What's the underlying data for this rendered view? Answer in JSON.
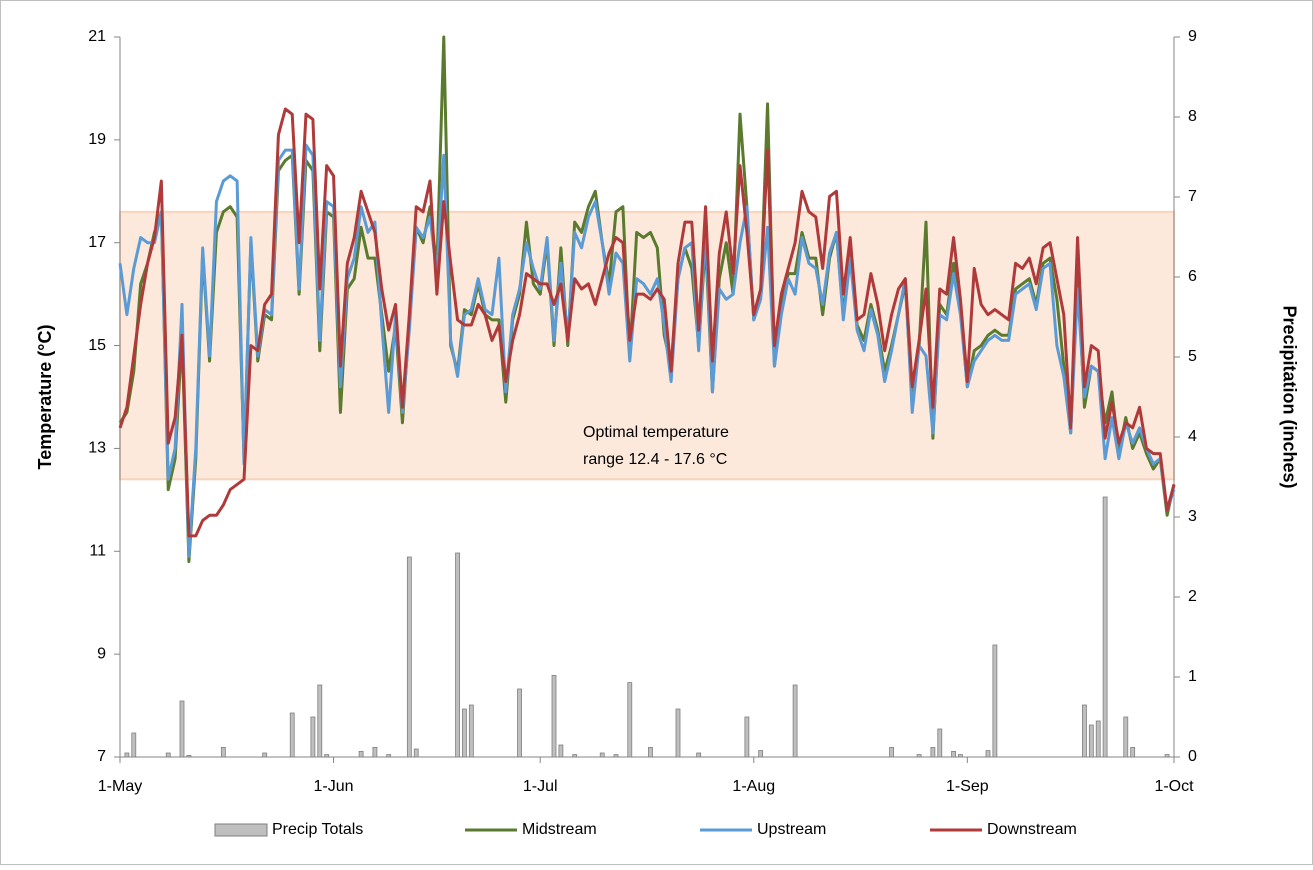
{
  "chart_data": {
    "type": "combo",
    "y_label": "Temperature (°C)",
    "y2_label": "Precipitation (inches)",
    "annotation": [
      "Optimal temperature",
      "range 12.4 - 17.6 °C"
    ],
    "band": [
      12.4,
      17.6
    ],
    "band_color": "#fde9dc",
    "xlim": [
      0,
      153
    ],
    "xticks": [
      {
        "value": 0,
        "label": "1-May"
      },
      {
        "value": 31,
        "label": "1-Jun"
      },
      {
        "value": 61,
        "label": "1-Jul"
      },
      {
        "value": 92,
        "label": "1-Aug"
      },
      {
        "value": 123,
        "label": "1-Sep"
      },
      {
        "value": 153,
        "label": "1-Oct"
      }
    ],
    "ylim": [
      7,
      21
    ],
    "yticks": [
      7,
      9,
      11,
      13,
      15,
      17,
      19,
      21
    ],
    "y2lim": [
      0,
      9
    ],
    "y2ticks": [
      0,
      1,
      2,
      3,
      4,
      5,
      6,
      7,
      8,
      9
    ],
    "grid": false,
    "legend": "bottom",
    "x": [
      0,
      1,
      2,
      3,
      4,
      5,
      6,
      7,
      8,
      9,
      10,
      11,
      12,
      13,
      14,
      15,
      16,
      17,
      18,
      19,
      20,
      21,
      22,
      23,
      24,
      25,
      26,
      27,
      28,
      29,
      30,
      31,
      32,
      33,
      34,
      35,
      36,
      37,
      38,
      39,
      40,
      41,
      42,
      43,
      44,
      45,
      46,
      47,
      48,
      49,
      50,
      51,
      52,
      53,
      54,
      55,
      56,
      57,
      58,
      59,
      60,
      61,
      62,
      63,
      64,
      65,
      66,
      67,
      68,
      69,
      70,
      71,
      72,
      73,
      74,
      75,
      76,
      77,
      78,
      79,
      80,
      81,
      82,
      83,
      84,
      85,
      86,
      87,
      88,
      89,
      90,
      91,
      92,
      93,
      94,
      95,
      96,
      97,
      98,
      99,
      100,
      101,
      102,
      103,
      104,
      105,
      106,
      107,
      108,
      109,
      110,
      111,
      112,
      113,
      114,
      115,
      116,
      117,
      118,
      119,
      120,
      121,
      122,
      123,
      124,
      125,
      126,
      127,
      128,
      129,
      130,
      131,
      132,
      133,
      134,
      135,
      136,
      137,
      138,
      139,
      140,
      141,
      142,
      143,
      144,
      145,
      146,
      147,
      148,
      149,
      150,
      151,
      152,
      153
    ],
    "series": [
      {
        "name": "Precip Totals",
        "type": "bar",
        "axis": "y2",
        "color": "#bfbfbf",
        "values": [
          0,
          0.05,
          0.3,
          0,
          0,
          0,
          0,
          0.05,
          0,
          0.7,
          0.02,
          0,
          0,
          0,
          0,
          0.12,
          0,
          0,
          0,
          0,
          0,
          0.05,
          0,
          0,
          0,
          0.55,
          0,
          0,
          0.5,
          0.9,
          0.03,
          0,
          0,
          0,
          0,
          0.07,
          0,
          0.12,
          0,
          0.03,
          0,
          0,
          2.5,
          0.1,
          0,
          0,
          0,
          0,
          0,
          2.55,
          0.6,
          0.65,
          0,
          0,
          0,
          0,
          0,
          0,
          0.85,
          0,
          0,
          0,
          0,
          1.02,
          0.15,
          0,
          0.03,
          0,
          0,
          0,
          0.05,
          0,
          0.03,
          0,
          0.93,
          0,
          0,
          0.12,
          0,
          0,
          0,
          0.6,
          0,
          0,
          0.05,
          0,
          0,
          0,
          0,
          0,
          0,
          0.5,
          0,
          0.08,
          0,
          0,
          0,
          0,
          0.9,
          0,
          0,
          0,
          0,
          0,
          0,
          0,
          0,
          0,
          0,
          0,
          0,
          0,
          0.12,
          0,
          0,
          0,
          0.03,
          0,
          0.12,
          0.35,
          0,
          0.07,
          0.03,
          0,
          0,
          0,
          0.08,
          1.4,
          0,
          0,
          0,
          0,
          0,
          0,
          0,
          0,
          0,
          0,
          0,
          0,
          0.65,
          0.4,
          0.45,
          3.25,
          0,
          0,
          0.5,
          0.12,
          0,
          0,
          0,
          0,
          0.03,
          0
        ]
      },
      {
        "name": "Midstream",
        "type": "line",
        "color": "#5a7a2e",
        "values": [
          13.5,
          13.7,
          14.5,
          16.2,
          16.6,
          17.2,
          17.6,
          12.2,
          12.8,
          15.2,
          10.8,
          12.8,
          16.8,
          14.7,
          17.2,
          17.6,
          17.7,
          17.5,
          12.8,
          17.0,
          14.7,
          15.6,
          15.5,
          18.4,
          18.6,
          18.7,
          16.0,
          18.6,
          18.4,
          14.9,
          17.6,
          17.5,
          13.7,
          16.1,
          16.3,
          17.3,
          16.7,
          16.7,
          15.6,
          14.5,
          15.4,
          13.5,
          15.5,
          17.3,
          17.0,
          17.7,
          16.5,
          21.0,
          15.0,
          14.5,
          15.7,
          15.6,
          16.2,
          15.6,
          15.5,
          15.5,
          13.9,
          15.5,
          16.0,
          17.4,
          16.2,
          16.0,
          17.0,
          15.0,
          16.9,
          15.0,
          17.4,
          17.2,
          17.7,
          18.0,
          17.0,
          16.2,
          17.6,
          17.7,
          14.8,
          17.2,
          17.1,
          17.2,
          16.9,
          15.2,
          14.6,
          16.3,
          16.9,
          16.5,
          15.0,
          17.0,
          14.1,
          16.3,
          17.0,
          16.0,
          19.5,
          17.7,
          15.5,
          16.0,
          19.7,
          14.6,
          15.8,
          16.4,
          16.4,
          17.2,
          16.7,
          16.7,
          15.6,
          16.7,
          17.2,
          15.6,
          16.8,
          15.4,
          15.1,
          15.8,
          15.3,
          14.5,
          15.0,
          15.6,
          16.2,
          13.9,
          15.0,
          17.4,
          13.2,
          15.8,
          15.6,
          16.6,
          15.7,
          14.2,
          14.9,
          15.0,
          15.2,
          15.3,
          15.2,
          15.2,
          16.1,
          16.2,
          16.3,
          15.8,
          16.6,
          16.7,
          15.9,
          14.6,
          13.3,
          16.5,
          13.8,
          14.6,
          14.5,
          13.5,
          14.1,
          12.9,
          13.6,
          13.0,
          13.3,
          12.9,
          12.6,
          12.8,
          11.7,
          12.3
        ]
      },
      {
        "name": "Upstream",
        "type": "line",
        "color": "#5b9bd5",
        "values": [
          16.6,
          15.6,
          16.5,
          17.1,
          17.0,
          17.0,
          17.6,
          12.4,
          13.0,
          15.8,
          10.9,
          13.0,
          16.9,
          14.8,
          17.8,
          18.2,
          18.3,
          18.2,
          12.7,
          17.1,
          14.8,
          15.7,
          15.6,
          18.6,
          18.8,
          18.8,
          16.1,
          18.9,
          18.7,
          15.1,
          17.8,
          17.7,
          14.2,
          16.3,
          16.7,
          17.7,
          17.2,
          17.4,
          15.4,
          13.7,
          15.6,
          13.7,
          15.3,
          17.3,
          17.1,
          17.5,
          16.4,
          18.7,
          15.1,
          14.4,
          15.6,
          15.7,
          16.3,
          15.7,
          15.6,
          16.7,
          14.1,
          15.6,
          16.1,
          17.0,
          16.5,
          16.1,
          17.1,
          15.1,
          16.6,
          15.1,
          17.2,
          16.9,
          17.5,
          17.8,
          17.0,
          16.0,
          16.8,
          16.6,
          14.7,
          16.3,
          16.2,
          16.0,
          16.3,
          15.4,
          14.3,
          16.3,
          16.9,
          17.0,
          14.9,
          17.3,
          14.1,
          16.1,
          15.9,
          16.0,
          17.0,
          17.7,
          15.5,
          15.9,
          17.3,
          14.6,
          15.6,
          16.3,
          16.0,
          17.1,
          16.6,
          16.5,
          15.8,
          16.8,
          17.2,
          15.5,
          16.7,
          15.3,
          14.9,
          15.7,
          15.2,
          14.3,
          14.9,
          15.6,
          16.3,
          13.7,
          15.0,
          14.8,
          13.3,
          15.6,
          15.5,
          16.4,
          15.6,
          14.2,
          14.7,
          14.9,
          15.1,
          15.2,
          15.1,
          15.1,
          16.0,
          16.1,
          16.2,
          15.7,
          16.5,
          16.6,
          15.0,
          14.4,
          13.3,
          16.1,
          14.0,
          14.6,
          14.5,
          12.8,
          13.6,
          12.8,
          13.5,
          13.1,
          13.4,
          13.0,
          12.7,
          12.8,
          11.8,
          12.2
        ]
      },
      {
        "name": "Downstream",
        "type": "line",
        "color": "#b03a3a",
        "values": [
          13.4,
          13.8,
          14.8,
          15.8,
          16.6,
          17.1,
          18.2,
          13.1,
          13.6,
          15.2,
          11.3,
          11.3,
          11.6,
          11.7,
          11.7,
          11.9,
          12.2,
          12.3,
          12.4,
          15.0,
          14.9,
          15.8,
          16.0,
          19.1,
          19.6,
          19.5,
          17.0,
          19.5,
          19.4,
          16.1,
          18.5,
          18.3,
          14.6,
          16.6,
          17.1,
          18.0,
          17.6,
          17.2,
          16.1,
          15.3,
          15.8,
          13.8,
          15.6,
          17.7,
          17.6,
          18.2,
          16.0,
          17.8,
          16.6,
          15.5,
          15.4,
          15.4,
          15.8,
          15.6,
          15.1,
          15.4,
          14.3,
          15.1,
          15.6,
          16.4,
          16.3,
          16.2,
          16.2,
          15.8,
          16.2,
          15.1,
          16.3,
          16.1,
          16.2,
          15.8,
          16.3,
          16.8,
          17.1,
          17.0,
          15.1,
          16.0,
          16.0,
          15.9,
          16.1,
          15.9,
          14.5,
          16.6,
          17.4,
          17.4,
          15.3,
          17.7,
          14.7,
          16.8,
          17.6,
          16.4,
          18.5,
          17.2,
          15.6,
          16.1,
          18.8,
          15.0,
          16.0,
          16.5,
          17.0,
          18.0,
          17.6,
          17.5,
          16.5,
          17.9,
          18.0,
          16.0,
          17.1,
          15.5,
          15.6,
          16.4,
          15.8,
          14.9,
          15.6,
          16.1,
          16.3,
          14.2,
          15.1,
          16.1,
          13.8,
          16.1,
          16.0,
          17.1,
          15.9,
          14.3,
          16.5,
          15.8,
          15.6,
          15.7,
          15.6,
          15.5,
          16.6,
          16.5,
          16.7,
          16.2,
          16.9,
          17.0,
          16.3,
          15.6,
          13.4,
          17.1,
          14.2,
          15.0,
          14.9,
          13.2,
          13.9,
          13.1,
          13.5,
          13.4,
          13.8,
          13.0,
          12.9,
          12.9,
          11.8,
          12.3
        ]
      }
    ]
  }
}
